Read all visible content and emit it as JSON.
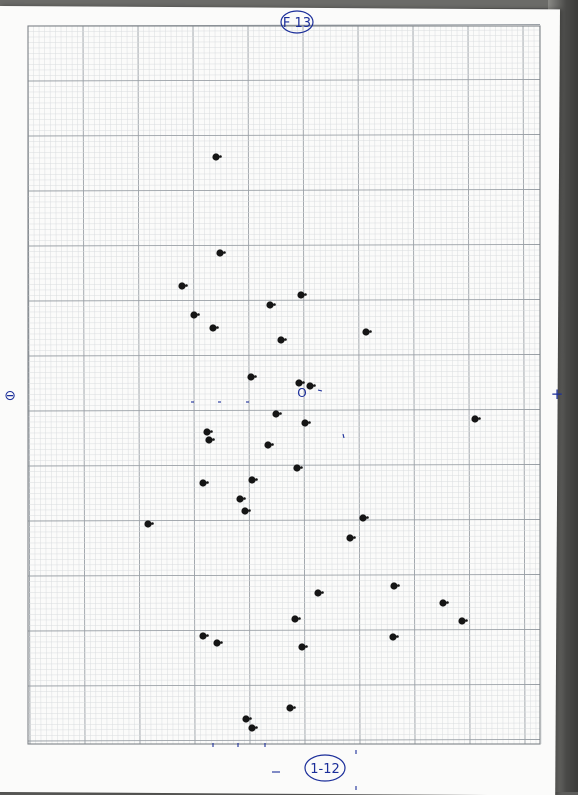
{
  "labels": {
    "top_circled": "F 13",
    "bottom_circled": "1-12",
    "origin": "O",
    "left_sign": "⊖",
    "right_sign": "+"
  },
  "colors": {
    "grid_major": "#9aa0a6",
    "grid_minor": "#d9dcdf",
    "dots": "#151515",
    "pen": "#1b2e9a"
  }
}
